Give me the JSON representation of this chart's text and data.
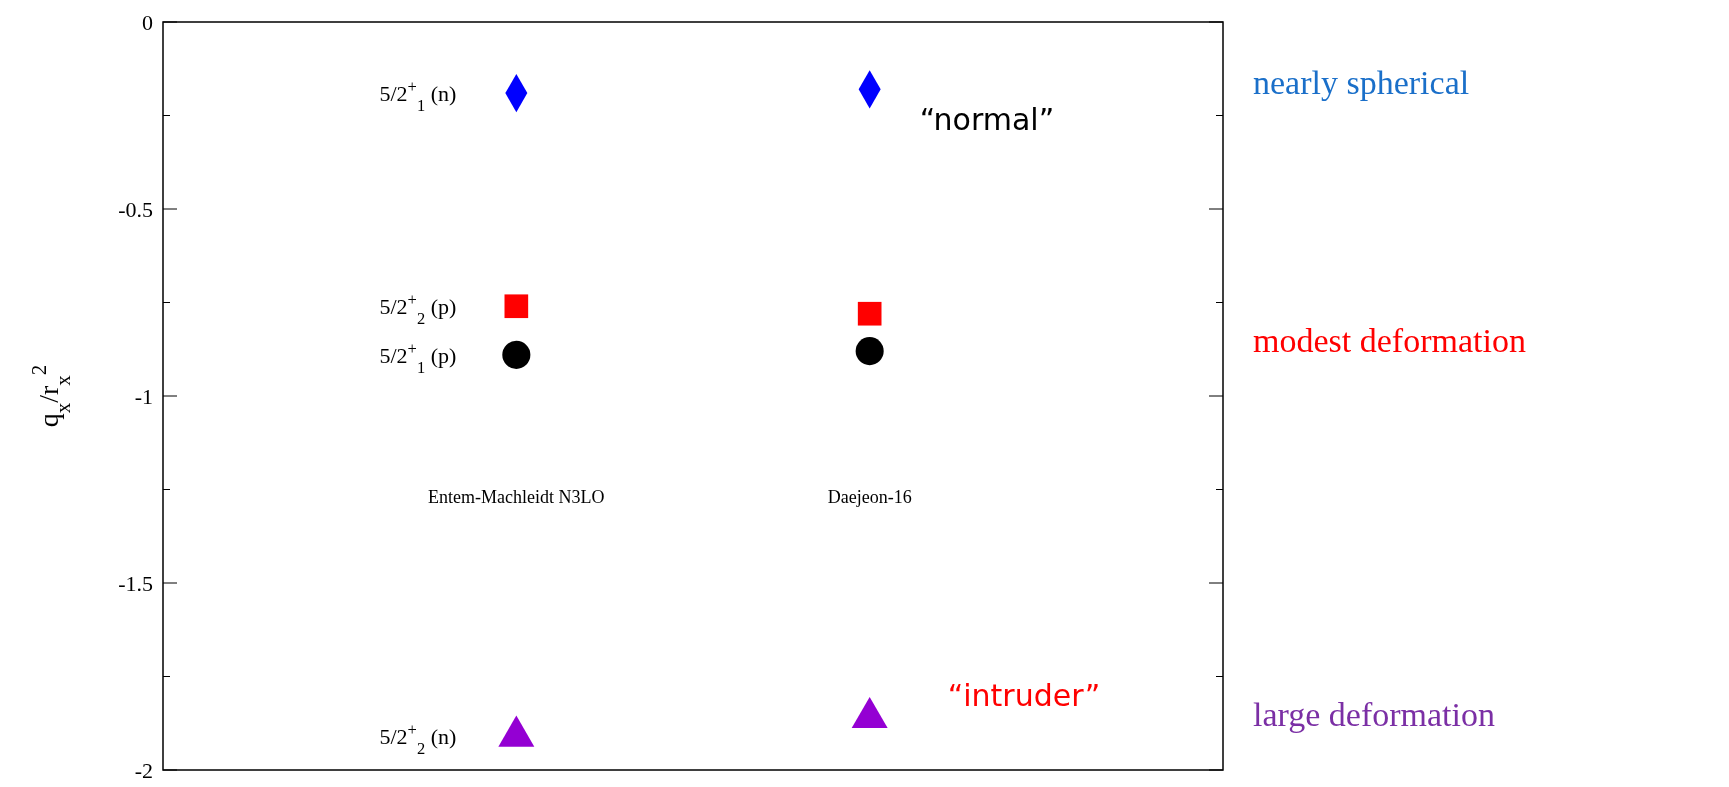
{
  "chart_data": {
    "type": "scatter",
    "ylabel": "q$_{x}$/r$_{x}$$^{2}$",
    "categories": [
      "Entem-Machleidt N3LO",
      "Daejeon-16"
    ],
    "ylim": [
      -2,
      0
    ],
    "yticks": [
      0,
      {
        "value": -0.25,
        "label": null
      },
      -0.5,
      {
        "value": -0.75,
        "label": null
      },
      -1,
      {
        "value": -1.25,
        "label": null
      },
      -1.5,
      {
        "value": -1.75,
        "label": null
      },
      -2
    ],
    "grid": false,
    "legend": "left",
    "series": [
      {
        "name": "5/2$^{+}$$_{1}$ (n)",
        "color": "#0000ff",
        "marker": "diamond",
        "values": [
          -0.19,
          -0.18
        ]
      },
      {
        "name": "5/2$^{+}$$_{2}$ (p)",
        "color": "#ff0000",
        "marker": "square",
        "values": [
          -0.76,
          -0.78
        ]
      },
      {
        "name": "5/2$^{+}$$_{1}$ (p)",
        "color": "#000000",
        "marker": "circle",
        "values": [
          -0.89,
          -0.88
        ]
      },
      {
        "name": "5/2$^{+}$$_{2}$ (n)",
        "color": "#9400d3",
        "marker": "triangle",
        "values": [
          -1.91,
          -1.86
        ]
      }
    ],
    "annotations": [
      "“normal”",
      "“intruder”",
      "nearly spherical",
      "modest deformation",
      "large deformation"
    ]
  }
}
